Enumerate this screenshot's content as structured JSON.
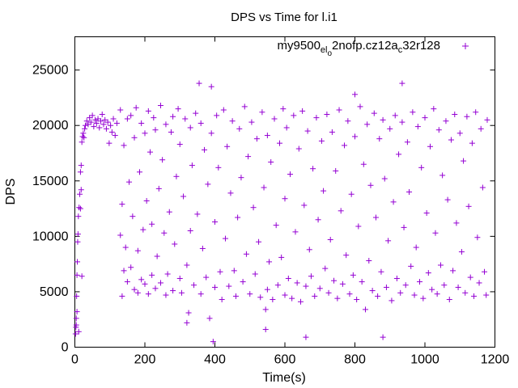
{
  "chart_data": {
    "type": "scatter",
    "title": "DPS vs Time for l.i1",
    "xlabel": "Time(s)",
    "ylabel": "DPS",
    "xlim": [
      0,
      1200
    ],
    "ylim": [
      0,
      28000
    ],
    "xticks": [
      0,
      200,
      400,
      600,
      800,
      1000,
      1200
    ],
    "yticks": [
      0,
      5000,
      10000,
      15000,
      20000,
      25000
    ],
    "legend": {
      "placement": "top-right",
      "label_parts": [
        "my9500",
        "el",
        "o",
        "2nofp.cz12a",
        "c",
        "32r128"
      ]
    },
    "series": [
      {
        "name": "my9500_el_o2nofp.cz12a_c32r128",
        "color": "#9400d3",
        "marker": "+",
        "points": [
          [
            2,
            1200
          ],
          [
            3,
            1800
          ],
          [
            4,
            2600
          ],
          [
            5,
            4600
          ],
          [
            6,
            6500
          ],
          [
            7,
            7700
          ],
          [
            8,
            9500
          ],
          [
            9,
            10200
          ],
          [
            10,
            11800
          ],
          [
            12,
            12600
          ],
          [
            14,
            13800
          ],
          [
            16,
            15800
          ],
          [
            18,
            16400
          ],
          [
            20,
            18500
          ],
          [
            22,
            19000
          ],
          [
            24,
            19300
          ],
          [
            26,
            18900
          ],
          [
            28,
            19700
          ],
          [
            30,
            20000
          ],
          [
            34,
            20400
          ],
          [
            38,
            20100
          ],
          [
            42,
            20700
          ],
          [
            46,
            20300
          ],
          [
            50,
            20900
          ],
          [
            54,
            19900
          ],
          [
            58,
            20500
          ],
          [
            62,
            20200
          ],
          [
            66,
            20600
          ],
          [
            70,
            19800
          ],
          [
            74,
            20400
          ],
          [
            78,
            21000
          ],
          [
            82,
            20100
          ],
          [
            86,
            20500
          ],
          [
            90,
            19700
          ],
          [
            94,
            20300
          ],
          [
            98,
            18400
          ],
          [
            102,
            20000
          ],
          [
            106,
            19400
          ],
          [
            110,
            20600
          ],
          [
            115,
            19100
          ],
          [
            120,
            20200
          ],
          [
            20,
            6400
          ],
          [
            4,
            2000
          ],
          [
            18,
            14200
          ],
          [
            11,
            1400
          ],
          [
            6,
            3200
          ],
          [
            16,
            12500
          ],
          [
            130,
            21400
          ],
          [
            135,
            4600
          ],
          [
            130,
            10100
          ],
          [
            135,
            12900
          ],
          [
            140,
            6900
          ],
          [
            140,
            18200
          ],
          [
            145,
            9000
          ],
          [
            150,
            20600
          ],
          [
            150,
            5900
          ],
          [
            155,
            14900
          ],
          [
            160,
            20900
          ],
          [
            160,
            7200
          ],
          [
            165,
            11800
          ],
          [
            170,
            5200
          ],
          [
            170,
            18900
          ],
          [
            175,
            21600
          ],
          [
            180,
            8700
          ],
          [
            180,
            4900
          ],
          [
            185,
            15800
          ],
          [
            190,
            20200
          ],
          [
            190,
            6100
          ],
          [
            195,
            10600
          ],
          [
            200,
            19300
          ],
          [
            200,
            5700
          ],
          [
            205,
            13200
          ],
          [
            210,
            21300
          ],
          [
            210,
            4800
          ],
          [
            215,
            17600
          ],
          [
            220,
            6500
          ],
          [
            220,
            11100
          ],
          [
            225,
            20700
          ],
          [
            230,
            5300
          ],
          [
            230,
            19600
          ],
          [
            235,
            8200
          ],
          [
            240,
            14300
          ],
          [
            245,
            21800
          ],
          [
            245,
            5800
          ],
          [
            250,
            16900
          ],
          [
            255,
            10300
          ],
          [
            260,
            20100
          ],
          [
            260,
            4700
          ],
          [
            265,
            6600
          ],
          [
            270,
            12200
          ],
          [
            275,
            19400
          ],
          [
            280,
            5100
          ],
          [
            280,
            20800
          ],
          [
            285,
            9300
          ],
          [
            290,
            15400
          ],
          [
            295,
            21500
          ],
          [
            300,
            6200
          ],
          [
            300,
            18300
          ],
          [
            305,
            4900
          ],
          [
            310,
            13600
          ],
          [
            315,
            20600
          ],
          [
            320,
            2200
          ],
          [
            320,
            7400
          ],
          [
            325,
            3100
          ],
          [
            330,
            10500
          ],
          [
            330,
            19800
          ],
          [
            335,
            16400
          ],
          [
            340,
            5600
          ],
          [
            345,
            21100
          ],
          [
            350,
            12000
          ],
          [
            355,
            23800
          ],
          [
            360,
            4800
          ],
          [
            360,
            20200
          ],
          [
            365,
            8900
          ],
          [
            370,
            17800
          ],
          [
            375,
            6300
          ],
          [
            380,
            14700
          ],
          [
            385,
            2600
          ],
          [
            390,
            23500
          ],
          [
            390,
            19300
          ],
          [
            395,
            500
          ],
          [
            400,
            5400
          ],
          [
            400,
            11300
          ],
          [
            405,
            20900
          ],
          [
            410,
            16200
          ],
          [
            415,
            6800
          ],
          [
            420,
            4300
          ],
          [
            425,
            21400
          ],
          [
            430,
            9800
          ],
          [
            435,
            18100
          ],
          [
            440,
            5500
          ],
          [
            445,
            13900
          ],
          [
            450,
            20400
          ],
          [
            455,
            6900
          ],
          [
            460,
            4600
          ],
          [
            465,
            11700
          ],
          [
            470,
            19700
          ],
          [
            475,
            15300
          ],
          [
            480,
            5900
          ],
          [
            485,
            21700
          ],
          [
            490,
            8400
          ],
          [
            495,
            17200
          ],
          [
            500,
            4800
          ],
          [
            505,
            20300
          ],
          [
            510,
            12600
          ],
          [
            515,
            6600
          ],
          [
            520,
            18800
          ],
          [
            525,
            9500
          ],
          [
            530,
            4500
          ],
          [
            535,
            21200
          ],
          [
            540,
            14400
          ],
          [
            545,
            3400
          ],
          [
            545,
            1600
          ],
          [
            550,
            5200
          ],
          [
            550,
            19100
          ],
          [
            555,
            7700
          ],
          [
            560,
            16700
          ],
          [
            565,
            4300
          ],
          [
            570,
            20600
          ],
          [
            575,
            11000
          ],
          [
            580,
            5600
          ],
          [
            585,
            18400
          ],
          [
            590,
            8100
          ],
          [
            595,
            21500
          ],
          [
            600,
            4700
          ],
          [
            600,
            13400
          ],
          [
            605,
            19800
          ],
          [
            610,
            6200
          ],
          [
            615,
            15600
          ],
          [
            620,
            4400
          ],
          [
            625,
            20900
          ],
          [
            630,
            10400
          ],
          [
            635,
            5800
          ],
          [
            640,
            17900
          ],
          [
            645,
            4100
          ],
          [
            650,
            21300
          ],
          [
            655,
            12800
          ],
          [
            660,
            900
          ],
          [
            660,
            5500
          ],
          [
            665,
            19500
          ],
          [
            670,
            8800
          ],
          [
            675,
            6400
          ],
          [
            680,
            16100
          ],
          [
            685,
            4600
          ],
          [
            690,
            20700
          ],
          [
            695,
            11500
          ],
          [
            700,
            5300
          ],
          [
            705,
            18600
          ],
          [
            710,
            14100
          ],
          [
            715,
            7100
          ],
          [
            720,
            21000
          ],
          [
            725,
            4900
          ],
          [
            730,
            9700
          ],
          [
            735,
            19400
          ],
          [
            740,
            6000
          ],
          [
            745,
            15900
          ],
          [
            750,
            4400
          ],
          [
            755,
            21400
          ],
          [
            760,
            12300
          ],
          [
            765,
            5700
          ],
          [
            770,
            18200
          ],
          [
            775,
            8300
          ],
          [
            780,
            20400
          ],
          [
            785,
            4800
          ],
          [
            790,
            13800
          ],
          [
            795,
            6500
          ],
          [
            800,
            22800
          ],
          [
            800,
            19000
          ],
          [
            805,
            4300
          ],
          [
            810,
            10900
          ],
          [
            815,
            21700
          ],
          [
            820,
            5900
          ],
          [
            825,
            16500
          ],
          [
            830,
            3400
          ],
          [
            835,
            20100
          ],
          [
            840,
            7800
          ],
          [
            845,
            14600
          ],
          [
            850,
            5100
          ],
          [
            855,
            21100
          ],
          [
            860,
            11700
          ],
          [
            865,
            4600
          ],
          [
            870,
            18800
          ],
          [
            875,
            6800
          ],
          [
            880,
            900
          ],
          [
            880,
            20500
          ],
          [
            885,
            15200
          ],
          [
            890,
            5400
          ],
          [
            895,
            9600
          ],
          [
            900,
            19700
          ],
          [
            905,
            4200
          ],
          [
            910,
            13100
          ],
          [
            915,
            20900
          ],
          [
            920,
            6200
          ],
          [
            925,
            17400
          ],
          [
            930,
            4900
          ],
          [
            935,
            23800
          ],
          [
            935,
            20300
          ],
          [
            940,
            10800
          ],
          [
            945,
            5600
          ],
          [
            950,
            18500
          ],
          [
            955,
            14000
          ],
          [
            960,
            7300
          ],
          [
            965,
            21200
          ],
          [
            970,
            4700
          ],
          [
            975,
            9000
          ],
          [
            980,
            19900
          ],
          [
            985,
            5900
          ],
          [
            990,
            16200
          ],
          [
            995,
            4400
          ],
          [
            1000,
            20700
          ],
          [
            1005,
            12100
          ],
          [
            1010,
            6700
          ],
          [
            1015,
            18100
          ],
          [
            1020,
            5200
          ],
          [
            1025,
            21500
          ],
          [
            1030,
            10300
          ],
          [
            1035,
            4800
          ],
          [
            1040,
            19600
          ],
          [
            1045,
            7400
          ],
          [
            1050,
            15500
          ],
          [
            1055,
            5600
          ],
          [
            1060,
            20400
          ],
          [
            1065,
            13300
          ],
          [
            1070,
            4300
          ],
          [
            1075,
            18700
          ],
          [
            1080,
            6900
          ],
          [
            1085,
            21000
          ],
          [
            1090,
            11200
          ],
          [
            1095,
            5400
          ],
          [
            1100,
            19300
          ],
          [
            1105,
            8600
          ],
          [
            1110,
            16800
          ],
          [
            1115,
            4900
          ],
          [
            1120,
            20800
          ],
          [
            1125,
            12700
          ],
          [
            1130,
            6300
          ],
          [
            1135,
            18400
          ],
          [
            1140,
            4600
          ],
          [
            1145,
            21200
          ],
          [
            1150,
            9900
          ],
          [
            1155,
            5800
          ],
          [
            1160,
            19700
          ],
          [
            1165,
            14400
          ],
          [
            1170,
            6800
          ],
          [
            1175,
            4700
          ],
          [
            1178,
            20500
          ]
        ]
      }
    ]
  }
}
